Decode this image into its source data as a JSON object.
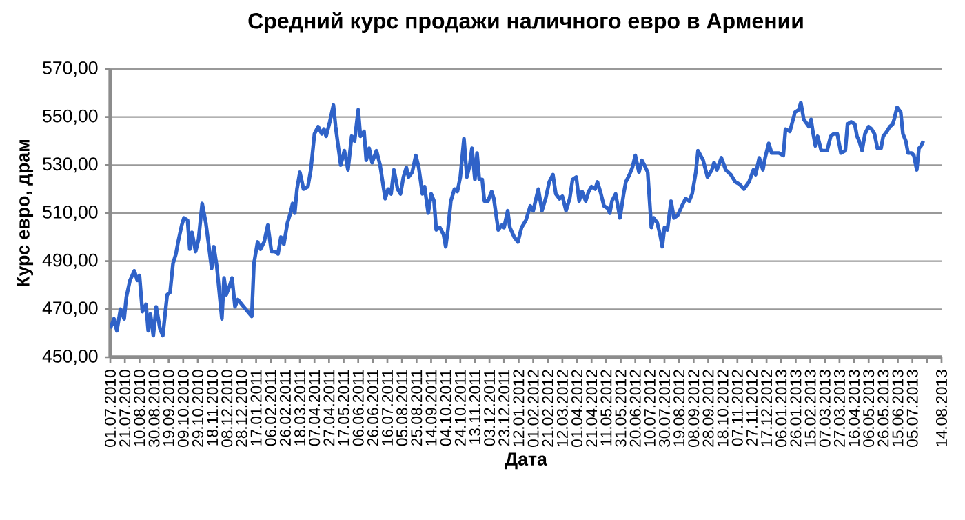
{
  "chart_data": {
    "type": "line",
    "title": "Средний курс продажи наличного евро в Армении",
    "xlabel": "Дата",
    "ylabel": "Курс евро, драм",
    "xlim": [
      "2010-07-01",
      "2013-08-14"
    ],
    "ylim": [
      450,
      570
    ],
    "yticks": [
      {
        "value": 450,
        "label": "450,00"
      },
      {
        "value": 470,
        "label": "470,00"
      },
      {
        "value": 490,
        "label": "490,00"
      },
      {
        "value": 510,
        "label": "510,00"
      },
      {
        "value": 530,
        "label": "530,00"
      },
      {
        "value": 550,
        "label": "550,00"
      },
      {
        "value": 570,
        "label": "570,00"
      }
    ],
    "xticks": [
      {
        "value": "2010-07-01",
        "label": "01.07.2010"
      },
      {
        "value": "2010-07-21",
        "label": "21.07.2010"
      },
      {
        "value": "2010-08-10",
        "label": "10.08.2010"
      },
      {
        "value": "2010-08-30",
        "label": "30.08.2010"
      },
      {
        "value": "2010-09-19",
        "label": "19.09.2010"
      },
      {
        "value": "2010-10-09",
        "label": "09.10.2010"
      },
      {
        "value": "2010-10-29",
        "label": "29.10.2010"
      },
      {
        "value": "2010-11-18",
        "label": "18.11.2010"
      },
      {
        "value": "2010-12-08",
        "label": "08.12.2010"
      },
      {
        "value": "2010-12-28",
        "label": "28.12.2010"
      },
      {
        "value": "2011-01-17",
        "label": "17.01.2011"
      },
      {
        "value": "2011-02-06",
        "label": "06.02.2011"
      },
      {
        "value": "2011-02-26",
        "label": "26.02.2011"
      },
      {
        "value": "2011-03-18",
        "label": "18.03.2011"
      },
      {
        "value": "2011-04-07",
        "label": "07.04.2011"
      },
      {
        "value": "2011-04-27",
        "label": "27.04.2011"
      },
      {
        "value": "2011-05-17",
        "label": "17.05.2011"
      },
      {
        "value": "2011-06-06",
        "label": "06.06.2011"
      },
      {
        "value": "2011-06-26",
        "label": "26.06.2011"
      },
      {
        "value": "2011-07-16",
        "label": "16.07.2011"
      },
      {
        "value": "2011-08-05",
        "label": "05.08.2011"
      },
      {
        "value": "2011-08-25",
        "label": "25.08.2011"
      },
      {
        "value": "2011-09-14",
        "label": "14.09.2011"
      },
      {
        "value": "2011-10-04",
        "label": "04.10.2011"
      },
      {
        "value": "2011-10-24",
        "label": "24.10.2011"
      },
      {
        "value": "2011-11-13",
        "label": "13.11.2011"
      },
      {
        "value": "2011-12-03",
        "label": "03.12.2011"
      },
      {
        "value": "2011-12-23",
        "label": "23.12.2011"
      },
      {
        "value": "2012-01-12",
        "label": "12.01.2012"
      },
      {
        "value": "2012-02-01",
        "label": "01.02.2012"
      },
      {
        "value": "2012-02-21",
        "label": "21.02.2012"
      },
      {
        "value": "2012-03-12",
        "label": "12.03.2012"
      },
      {
        "value": "2012-04-01",
        "label": "01.04.2012"
      },
      {
        "value": "2012-04-21",
        "label": "21.04.2012"
      },
      {
        "value": "2012-05-11",
        "label": "11.05.2012"
      },
      {
        "value": "2012-05-31",
        "label": "31.05.2012"
      },
      {
        "value": "2012-06-20",
        "label": "20.06.2012"
      },
      {
        "value": "2012-07-10",
        "label": "10.07.2012"
      },
      {
        "value": "2012-07-30",
        "label": "30.07.2012"
      },
      {
        "value": "2012-08-19",
        "label": "19.08.2012"
      },
      {
        "value": "2012-09-08",
        "label": "08.09.2012"
      },
      {
        "value": "2012-09-28",
        "label": "28.09.2012"
      },
      {
        "value": "2012-10-18",
        "label": "18.10.2012"
      },
      {
        "value": "2012-11-07",
        "label": "07.11.2012"
      },
      {
        "value": "2012-11-27",
        "label": "27.11.2012"
      },
      {
        "value": "2012-12-17",
        "label": "17.12.2012"
      },
      {
        "value": "2013-01-06",
        "label": "06.01.2013"
      },
      {
        "value": "2013-01-26",
        "label": "26.01.2013"
      },
      {
        "value": "2013-02-15",
        "label": "15.02.2013"
      },
      {
        "value": "2013-03-07",
        "label": "07.03.2013"
      },
      {
        "value": "2013-03-27",
        "label": "27.03.2013"
      },
      {
        "value": "2013-04-16",
        "label": "16.04.2013"
      },
      {
        "value": "2013-05-06",
        "label": "06.05.2013"
      },
      {
        "value": "2013-05-26",
        "label": "26.05.2013"
      },
      {
        "value": "2013-06-15",
        "label": "15.06.2013"
      },
      {
        "value": "2013-07-05",
        "label": "05.07.2013"
      },
      {
        "value": "2013-07-25",
        "label": null
      },
      {
        "value": "2013-08-14",
        "label": "14.08.2013"
      }
    ],
    "grid": "y",
    "legend": false,
    "marker": "none",
    "line_style": "solid",
    "series": [
      {
        "color": "#2f62c8",
        "x": [
          "2010-07-01",
          "2010-07-06",
          "2010-07-10",
          "2010-07-15",
          "2010-07-20",
          "2010-07-23",
          "2010-07-28",
          "2010-08-03",
          "2010-08-07",
          "2010-08-10",
          "2010-08-14",
          "2010-08-19",
          "2010-08-22",
          "2010-08-25",
          "2010-08-29",
          "2010-09-02",
          "2010-09-07",
          "2010-09-11",
          "2010-09-17",
          "2010-09-21",
          "2010-09-25",
          "2010-09-29",
          "2010-10-02",
          "2010-10-07",
          "2010-10-10",
          "2010-10-15",
          "2010-10-18",
          "2010-10-21",
          "2010-10-26",
          "2010-10-30",
          "2010-11-04",
          "2010-11-09",
          "2010-11-12",
          "2010-11-17",
          "2010-11-20",
          "2010-11-24",
          "2010-12-01",
          "2010-12-04",
          "2010-12-07",
          "2010-12-12",
          "2010-12-15",
          "2010-12-19",
          "2010-12-23",
          "2010-12-31",
          "2011-01-11",
          "2011-01-14",
          "2011-01-19",
          "2011-01-23",
          "2011-01-28",
          "2011-02-02",
          "2011-02-07",
          "2011-02-12",
          "2011-02-16",
          "2011-02-20",
          "2011-02-24",
          "2011-03-01",
          "2011-03-05",
          "2011-03-08",
          "2011-03-11",
          "2011-03-14",
          "2011-03-18",
          "2011-03-23",
          "2011-03-29",
          "2011-04-02",
          "2011-04-07",
          "2011-04-12",
          "2011-04-17",
          "2011-04-20",
          "2011-04-23",
          "2011-04-28",
          "2011-05-03",
          "2011-05-06",
          "2011-05-09",
          "2011-05-13",
          "2011-05-18",
          "2011-05-23",
          "2011-05-28",
          "2011-06-01",
          "2011-06-06",
          "2011-06-09",
          "2011-06-14",
          "2011-06-17",
          "2011-06-21",
          "2011-06-25",
          "2011-07-01",
          "2011-07-06",
          "2011-07-13",
          "2011-07-17",
          "2011-07-21",
          "2011-07-25",
          "2011-07-30",
          "2011-08-03",
          "2011-08-07",
          "2011-08-11",
          "2011-08-14",
          "2011-08-19",
          "2011-08-24",
          "2011-08-28",
          "2011-09-02",
          "2011-09-05",
          "2011-09-10",
          "2011-09-14",
          "2011-09-18",
          "2011-09-21",
          "2011-09-26",
          "2011-10-01",
          "2011-10-04",
          "2011-10-07",
          "2011-10-11",
          "2011-10-16",
          "2011-10-20",
          "2011-10-24",
          "2011-10-29",
          "2011-11-02",
          "2011-11-06",
          "2011-11-09",
          "2011-11-13",
          "2011-11-16",
          "2011-11-19",
          "2011-11-23",
          "2011-11-26",
          "2011-12-01",
          "2011-12-06",
          "2011-12-09",
          "2011-12-15",
          "2011-12-20",
          "2011-12-23",
          "2011-12-28",
          "2011-12-31",
          "2012-01-06",
          "2012-01-11",
          "2012-01-16",
          "2012-01-22",
          "2012-01-28",
          "2012-02-01",
          "2012-02-04",
          "2012-02-08",
          "2012-02-13",
          "2012-02-18",
          "2012-02-23",
          "2012-02-28",
          "2012-03-03",
          "2012-03-08",
          "2012-03-12",
          "2012-03-17",
          "2012-03-22",
          "2012-03-26",
          "2012-03-31",
          "2012-04-04",
          "2012-04-08",
          "2012-04-13",
          "2012-04-17",
          "2012-04-21",
          "2012-04-26",
          "2012-04-29",
          "2012-05-03",
          "2012-05-08",
          "2012-05-13",
          "2012-05-16",
          "2012-05-19",
          "2012-05-24",
          "2012-05-27",
          "2012-05-30",
          "2012-06-04",
          "2012-06-07",
          "2012-06-12",
          "2012-06-16",
          "2012-06-20",
          "2012-06-25",
          "2012-06-29",
          "2012-07-04",
          "2012-07-07",
          "2012-07-12",
          "2012-07-15",
          "2012-07-20",
          "2012-07-24",
          "2012-07-27",
          "2012-07-30",
          "2012-08-03",
          "2012-08-08",
          "2012-08-12",
          "2012-08-17",
          "2012-08-23",
          "2012-08-28",
          "2012-09-02",
          "2012-09-06",
          "2012-09-11",
          "2012-09-14",
          "2012-09-21",
          "2012-09-27",
          "2012-10-03",
          "2012-10-06",
          "2012-10-10",
          "2012-10-16",
          "2012-10-22",
          "2012-10-29",
          "2012-11-04",
          "2012-11-10",
          "2012-11-16",
          "2012-11-23",
          "2012-11-29",
          "2012-12-02",
          "2012-12-07",
          "2012-12-12",
          "2012-12-15",
          "2012-12-20",
          "2012-12-24",
          "2013-01-03",
          "2013-01-09",
          "2013-01-12",
          "2013-01-18",
          "2013-01-25",
          "2013-01-30",
          "2013-02-02",
          "2013-02-06",
          "2013-02-13",
          "2013-02-16",
          "2013-02-19",
          "2013-02-22",
          "2013-02-25",
          "2013-03-02",
          "2013-03-10",
          "2013-03-15",
          "2013-03-19",
          "2013-03-24",
          "2013-03-29",
          "2013-04-04",
          "2013-04-07",
          "2013-04-12",
          "2013-04-17",
          "2013-04-20",
          "2013-04-23",
          "2013-04-27",
          "2013-05-01",
          "2013-05-06",
          "2013-05-10",
          "2013-05-14",
          "2013-05-18",
          "2013-05-23",
          "2013-05-26",
          "2013-05-31",
          "2013-06-04",
          "2013-06-08",
          "2013-06-10",
          "2013-06-14",
          "2013-06-19",
          "2013-06-22",
          "2013-06-26",
          "2013-06-29",
          "2013-07-04",
          "2013-07-07",
          "2013-07-11",
          "2013-07-14",
          "2013-07-17",
          "2013-07-20"
        ],
        "values": [
          462,
          466,
          461,
          470,
          466,
          475,
          482,
          486,
          482,
          484,
          469,
          472,
          461,
          468,
          459,
          471,
          462,
          459,
          476,
          477,
          489,
          493,
          498,
          505,
          508,
          507,
          495,
          502,
          494,
          499,
          514,
          506,
          499,
          487,
          496,
          488,
          466,
          483,
          476,
          480,
          483,
          471,
          474,
          471,
          467,
          489,
          498,
          495,
          498,
          505,
          494,
          494,
          493,
          500,
          497,
          506,
          510,
          514,
          510,
          520,
          527,
          520,
          521,
          528,
          543,
          546,
          543,
          545,
          542,
          548,
          555,
          546,
          539,
          530,
          536,
          528,
          542,
          540,
          553,
          542,
          544,
          532,
          537,
          531,
          536,
          530,
          516,
          520,
          518,
          528,
          520,
          518,
          525,
          529,
          525,
          527,
          534,
          529,
          518,
          521,
          510,
          518,
          515,
          503,
          504,
          501,
          496,
          503,
          515,
          520,
          519,
          525,
          541,
          525,
          530,
          537,
          524,
          535,
          524,
          524,
          515,
          515,
          519,
          516,
          503,
          505,
          504,
          511,
          504,
          500,
          498,
          504,
          507,
          513,
          511,
          515,
          520,
          511,
          516,
          523,
          526,
          518,
          516,
          517,
          511,
          516,
          524,
          525,
          515,
          519,
          515,
          519,
          521,
          520,
          523,
          519,
          513,
          512,
          510,
          515,
          518,
          513,
          508,
          518,
          523,
          526,
          529,
          534,
          527,
          532,
          529,
          527,
          504,
          508,
          506,
          501,
          496,
          504,
          503,
          515,
          508,
          509,
          513,
          516,
          515,
          518,
          527,
          536,
          532,
          525,
          528,
          531,
          528,
          533,
          528,
          526,
          523,
          522,
          520,
          523,
          528,
          526,
          533,
          528,
          533,
          539,
          535,
          535,
          534,
          545,
          544,
          552,
          553,
          556,
          549,
          546,
          549,
          543,
          538,
          542,
          536,
          536,
          542,
          543,
          543,
          535,
          536,
          547,
          548,
          547,
          542,
          540,
          536,
          543,
          546,
          545,
          543,
          537,
          537,
          542,
          544,
          546,
          547,
          549,
          554,
          552,
          543,
          540,
          535,
          535,
          534,
          528,
          537,
          538,
          540
        ]
      }
    ]
  }
}
